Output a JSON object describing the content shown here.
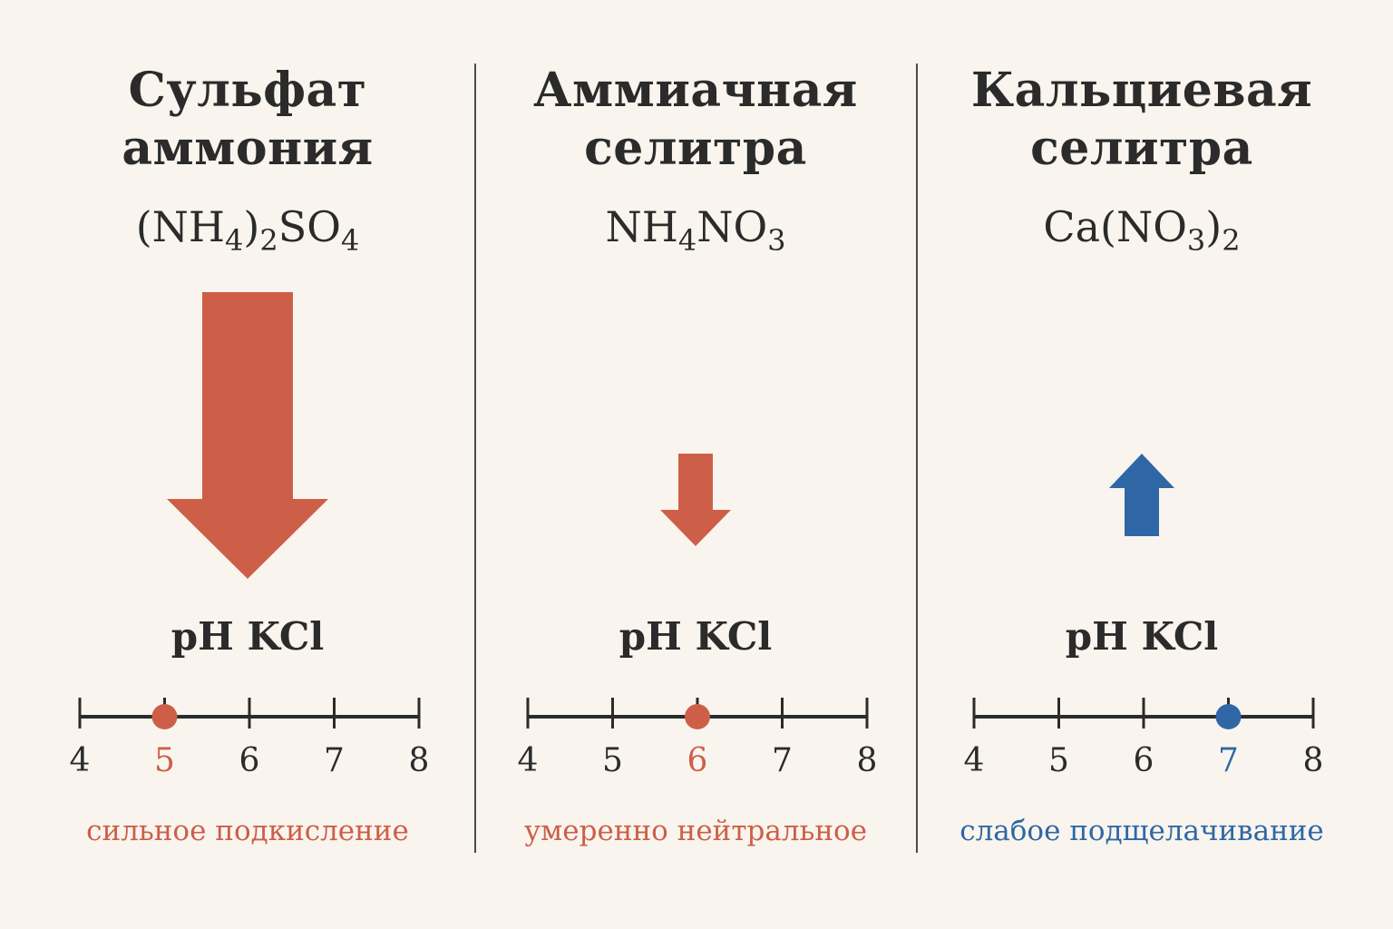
{
  "colors": {
    "background": "#f9f5ee",
    "acid_red": "#cd5f48",
    "alkaline_blue": "#2f67a6",
    "text_dark": "#2b2b2b"
  },
  "scale": {
    "ticks": [
      4,
      5,
      6,
      7,
      8
    ]
  },
  "panels": [
    {
      "title_line1": "Сульфат",
      "title_line2": "аммония",
      "formula": [
        [
          "(NH",
          ""
        ],
        [
          "4",
          "sub"
        ],
        [
          ")",
          ""
        ],
        [
          "2",
          "sub"
        ],
        [
          "SO",
          ""
        ],
        [
          "4",
          "sub"
        ]
      ],
      "arrow": {
        "direction": "down",
        "magnitude": "large",
        "icon": "arrow-down-large-icon"
      },
      "ph_label": "pH KCl",
      "ph_value": 5,
      "effect": "сильное подкисление",
      "color": "#cd5f48"
    },
    {
      "title_line1": "Аммиачная",
      "title_line2": "селитра",
      "formula": [
        [
          "NH",
          ""
        ],
        [
          "4",
          "sub"
        ],
        [
          "NO",
          ""
        ],
        [
          "3",
          "sub"
        ]
      ],
      "arrow": {
        "direction": "down",
        "magnitude": "small",
        "icon": "arrow-down-small-icon"
      },
      "ph_label": "pH KCl",
      "ph_value": 6,
      "effect": "умеренно нейтральное",
      "color": "#cd5f48"
    },
    {
      "title_line1": "Кальциевая",
      "title_line2": "селитра",
      "formula": [
        [
          "Ca(NO",
          ""
        ],
        [
          "3",
          "sub"
        ],
        [
          ")",
          ""
        ],
        [
          "2",
          "sub"
        ]
      ],
      "arrow": {
        "direction": "up",
        "magnitude": "small",
        "icon": "arrow-up-small-icon"
      },
      "ph_label": "pH KCl",
      "ph_value": 7,
      "effect": "слабое подщелачивание",
      "color": "#2f67a6"
    }
  ]
}
